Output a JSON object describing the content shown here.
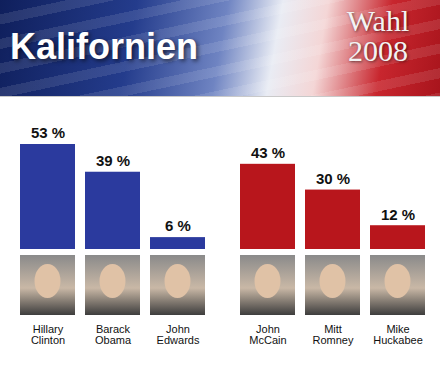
{
  "chart_data": {
    "type": "bar",
    "title": "Kalifornien",
    "subtitle": "Wahl 2008",
    "categories": [
      "Hillary Clinton",
      "Barack Obama",
      "John Edwards",
      "John McCain",
      "Mitt Romney",
      "Mike Huckabee"
    ],
    "values": [
      53,
      39,
      6,
      43,
      30,
      12
    ],
    "value_labels": [
      "53 %",
      "39 %",
      "6 %",
      "43 %",
      "30 %",
      "12 %"
    ],
    "colors": [
      "#2b3a9e",
      "#2b3a9e",
      "#2b3a9e",
      "#b8161c",
      "#b8161c",
      "#b8161c"
    ],
    "ylim": [
      0,
      53
    ],
    "yticks": [],
    "tick_labels": false,
    "data_labels": true,
    "grid": false
  }
}
